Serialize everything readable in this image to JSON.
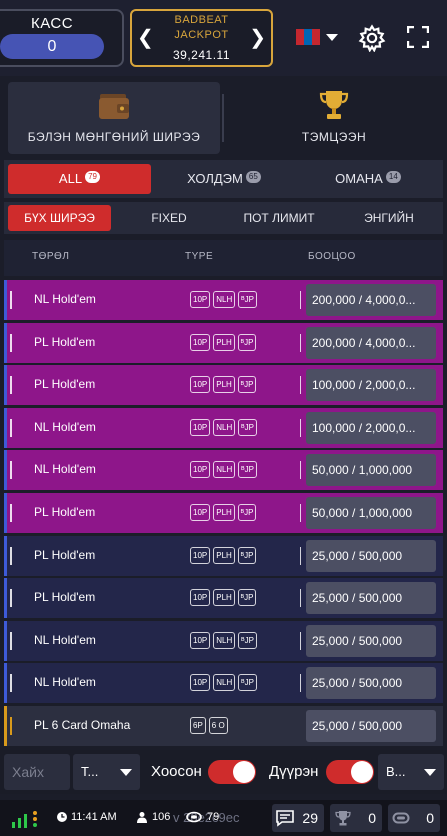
{
  "header": {
    "cashier": {
      "label": "КАСС",
      "balance": "0"
    },
    "jackpot": {
      "line1": "BADBEAT",
      "line2": "JACKPOT",
      "value": "39,241.11"
    },
    "language": {
      "flag": "mongolia-flag"
    },
    "icons": {
      "prev": "chevron-left-icon",
      "next": "chevron-right-icon",
      "settings": "gear-icon",
      "fullscreen": "fullscreen-icon"
    }
  },
  "modes": [
    {
      "label": "БЭЛЭН МӨНГӨНИЙ ШИРЭЭ",
      "icon": "wallet-icon",
      "active": true
    },
    {
      "label": "ТЭМЦЭЭН",
      "icon": "trophy-icon",
      "active": false
    }
  ],
  "game_filter": [
    {
      "label": "ALL",
      "count": "79",
      "active": true
    },
    {
      "label": "ХОЛДЭМ",
      "count": "65",
      "active": false
    },
    {
      "label": "ОМАНА",
      "count": "14",
      "active": false
    }
  ],
  "limit_filter": [
    {
      "label": "БҮХ ШИРЭЭ",
      "active": true
    },
    {
      "label": "FIXED",
      "active": false
    },
    {
      "label": "ПОТ ЛИМИТ",
      "active": false
    },
    {
      "label": "ЭНГИЙН",
      "active": false
    }
  ],
  "table": {
    "headers": {
      "type": "ТӨРӨЛ",
      "type2": "TYPE",
      "stakes": "БООЦОО"
    },
    "rows": [
      {
        "name": "NL Hold'em",
        "tags": [
          "10P",
          "NLH",
          "ᴮJP"
        ],
        "stakes": "200,000 / 4,000,0...",
        "highlight": true
      },
      {
        "name": "PL Hold'em",
        "tags": [
          "10P",
          "PLH",
          "ᴮJP"
        ],
        "stakes": "200,000 / 4,000,0...",
        "highlight": true
      },
      {
        "name": "PL Hold'em",
        "tags": [
          "10P",
          "PLH",
          "ᴮJP"
        ],
        "stakes": "100,000 / 2,000,0...",
        "highlight": true
      },
      {
        "name": "NL Hold'em",
        "tags": [
          "10P",
          "NLH",
          "ᴮJP"
        ],
        "stakes": "100,000 / 2,000,0...",
        "highlight": true
      },
      {
        "name": "NL Hold'em",
        "tags": [
          "10P",
          "NLH",
          "ᴮJP"
        ],
        "stakes": "50,000 / 1,000,000",
        "highlight": true
      },
      {
        "name": "PL Hold'em",
        "tags": [
          "10P",
          "PLH",
          "ᴮJP"
        ],
        "stakes": "50,000 / 1,000,000",
        "highlight": true
      },
      {
        "name": "PL Hold'em",
        "tags": [
          "10P",
          "PLH",
          "ᴮJP"
        ],
        "stakes": "25,000 / 500,000",
        "highlight": false
      },
      {
        "name": "PL Hold'em",
        "tags": [
          "10P",
          "PLH",
          "ᴮJP"
        ],
        "stakes": "25,000 / 500,000",
        "highlight": false
      },
      {
        "name": "NL Hold'em",
        "tags": [
          "10P",
          "NLH",
          "ᴮJP"
        ],
        "stakes": "25,000 / 500,000",
        "highlight": false
      },
      {
        "name": "NL Hold'em",
        "tags": [
          "10P",
          "NLH",
          "ᴮJP"
        ],
        "stakes": "25,000 / 500,000",
        "highlight": false
      },
      {
        "name": "PL 6 Card Omaha",
        "tags": [
          "6P",
          "6 O"
        ],
        "stakes": "25,000 / 500,000",
        "highlight": false,
        "omaha": true
      }
    ]
  },
  "bottom_filter": {
    "search_placeholder": "Хайх",
    "type_select": "T...",
    "empty_label": "Хоосон",
    "empty_on": true,
    "full_label": "Дүүрэн",
    "full_on": true,
    "last_select": "B..."
  },
  "status_bar": {
    "time": "11:41 AM",
    "users": "106",
    "views": "79",
    "version_id": "v 20e2c9ec",
    "chat_count": "29",
    "trophy_count": "0",
    "token_count": "0"
  },
  "colors": {
    "accent_red": "#cf2c2c",
    "jackpot_gold": "#d8a53c",
    "row_purple": "#8e168a",
    "row_navy": "#23264a",
    "row_omaha": "#2c2f40",
    "row_accent_blue": "#3e5bd8",
    "row_accent_gold": "#d89a1c"
  }
}
